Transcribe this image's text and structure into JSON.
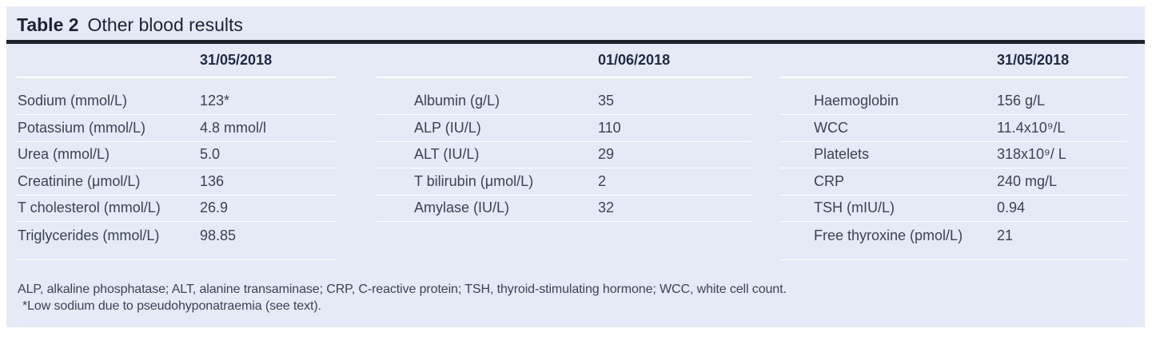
{
  "table": {
    "label": "Table 2",
    "title": "Other blood results",
    "groups": [
      {
        "date": "31/05/2018",
        "rows": [
          {
            "label": "Sodium (mmol/L)",
            "value": "123*"
          },
          {
            "label": "Potassium (mmol/L)",
            "value": "4.8 mmol/l"
          },
          {
            "label": "Urea (mmol/L)",
            "value": "5.0"
          },
          {
            "label": "Creatinine (μmol/L)",
            "value": "136"
          },
          {
            "label": "T cholesterol (mmol/L)",
            "value": "26.9"
          },
          {
            "label": "Triglycerides (mmol/L)",
            "value": "98.85"
          }
        ]
      },
      {
        "date": "01/06/2018",
        "rows": [
          {
            "label": "Albumin (g/L)",
            "value": "35"
          },
          {
            "label": "ALP (IU/L)",
            "value": "110"
          },
          {
            "label": "ALT (IU/L)",
            "value": "29"
          },
          {
            "label": "T bilirubin (μmol/L)",
            "value": "2"
          },
          {
            "label": "Amylase (IU/L)",
            "value": "32"
          }
        ]
      },
      {
        "date": "31/05/2018",
        "rows": [
          {
            "label": "Haemoglobin",
            "value": "156 g/L"
          },
          {
            "label": "WCC",
            "value": "11.4x10⁹/L"
          },
          {
            "label": "Platelets",
            "value": "318x10⁹/ L"
          },
          {
            "label": "CRP",
            "value": "240 mg/L"
          },
          {
            "label": "TSH (mIU/L)",
            "value": "0.94"
          },
          {
            "label": "Free thyroxine (pmol/L)",
            "value": "21"
          }
        ]
      }
    ],
    "footnotes": [
      "ALP, alkaline phosphatase; ALT, alanine transaminase; CRP, C-reactive protein; TSH, thyroid-stimulating hormone; WCC, white cell count.",
      "*Low sodium due to pseudohyponatraemia (see text)."
    ],
    "colors": {
      "panel_bg": "#e5eaf6",
      "title_rule": "#20222c",
      "heading_text": "#212a42",
      "body_text": "#3b4254",
      "row_separator": "#ffffff"
    }
  }
}
